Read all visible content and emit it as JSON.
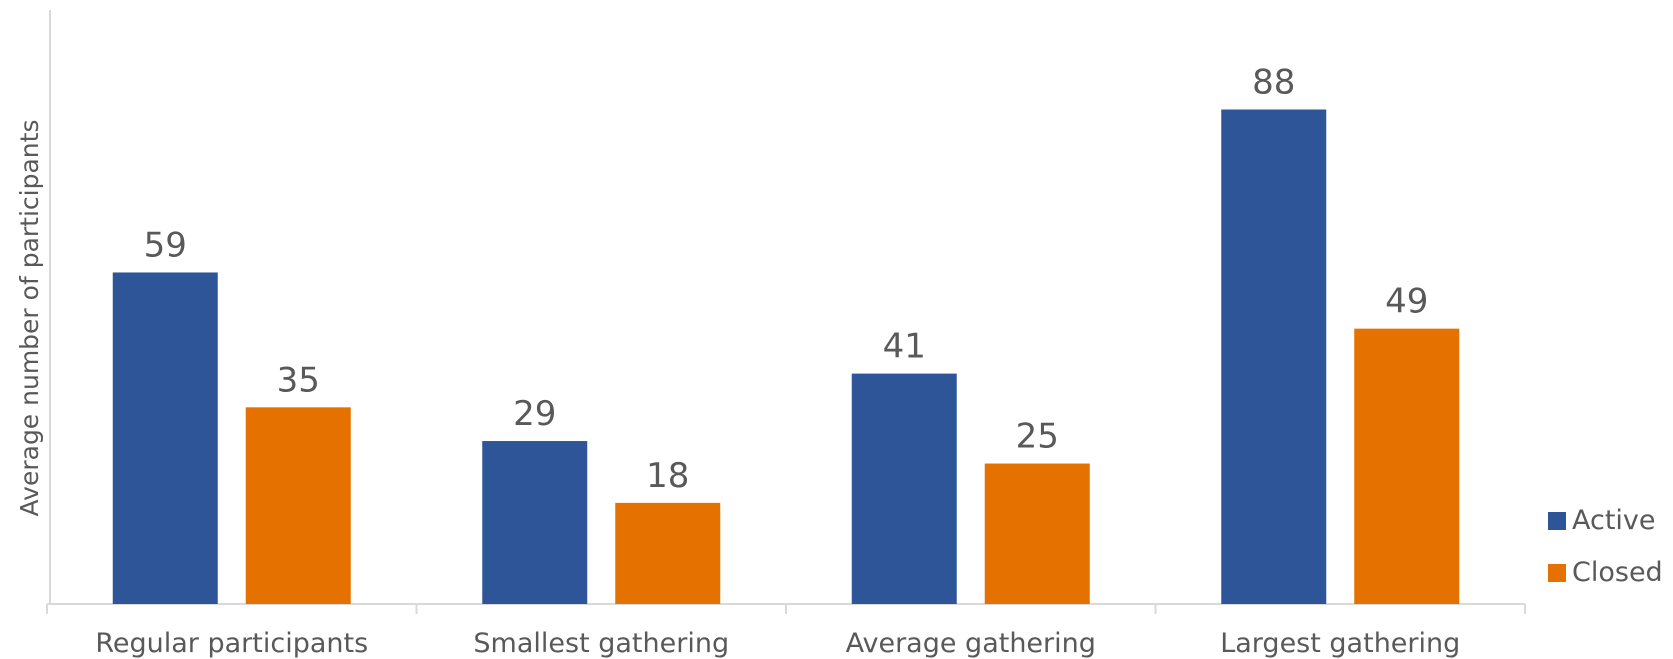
{
  "chart_data": {
    "type": "bar",
    "categories": [
      "Regular participants",
      "Smallest gathering",
      "Average gathering",
      "Largest gathering"
    ],
    "series": [
      {
        "name": "Active",
        "values": [
          59,
          29,
          41,
          88
        ],
        "color": "#2e5597"
      },
      {
        "name": "Closed",
        "values": [
          35,
          18,
          25,
          49
        ],
        "color": "#e57200"
      }
    ],
    "xlabel": "",
    "ylabel": "Average number of participants",
    "ylim": [
      0,
      100
    ],
    "grid": false,
    "legend_position": "right"
  }
}
